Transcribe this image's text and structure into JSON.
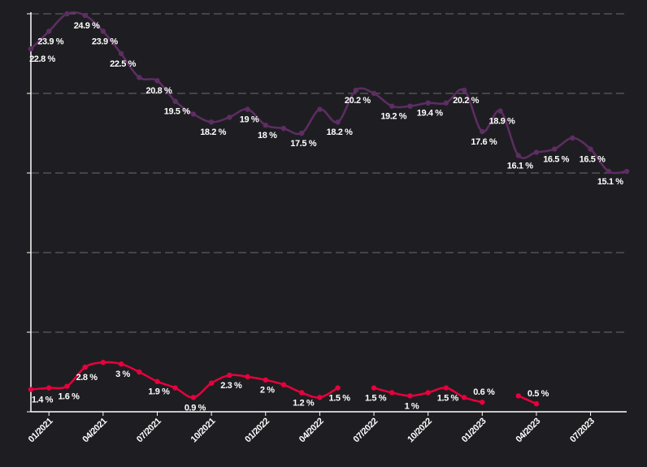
{
  "chart_data": {
    "type": "line",
    "categories": [
      null,
      "01/2021",
      null,
      null,
      "04/2021",
      null,
      null,
      "07/2021",
      null,
      null,
      "10/2021",
      null,
      null,
      "01/2022",
      null,
      null,
      "04/2022",
      null,
      null,
      "07/2022",
      null,
      null,
      "10/2022",
      null,
      null,
      "01/2023",
      null,
      null,
      "04/2023",
      null,
      null,
      "07/2023",
      null,
      null
    ],
    "series": [
      {
        "color": "#5e2d63",
        "values": [
          22.8,
          23.9,
          25.0,
          24.9,
          23.9,
          22.5,
          21.0,
          20.8,
          19.5,
          18.7,
          18.2,
          18.5,
          19.0,
          18.0,
          17.8,
          17.5,
          19.0,
          18.2,
          20.2,
          20.0,
          19.2,
          19.2,
          19.4,
          19.4,
          20.2,
          17.6,
          18.9,
          16.1,
          16.3,
          16.5,
          17.2,
          16.5,
          15.1,
          15.1
        ],
        "value_labels": [
          "22.8 %",
          "23.9 %",
          null,
          "24.9 %",
          "23.9 %",
          "22.5 %",
          null,
          "20.8 %",
          "19.5 %",
          null,
          "18.2 %",
          null,
          "19 %",
          "18 %",
          null,
          "17.5 %",
          null,
          "18.2 %",
          "20.2 %",
          null,
          "19.2 %",
          null,
          "19.4 %",
          null,
          "20.2 %",
          "17.6 %",
          "18.9 %",
          "16.1 %",
          null,
          "16.5 %",
          null,
          "16.5 %",
          "15.1 %",
          null
        ]
      },
      {
        "color": "#e8003d",
        "values": [
          1.4,
          1.5,
          1.6,
          2.8,
          3.1,
          3.0,
          2.5,
          1.9,
          1.5,
          0.9,
          1.8,
          2.3,
          2.2,
          2.0,
          1.7,
          1.2,
          0.9,
          1.5,
          null,
          1.5,
          1.2,
          1.0,
          1.2,
          1.5,
          0.9,
          0.6,
          null,
          1.0,
          0.5,
          null,
          null,
          null,
          null,
          null
        ],
        "value_labels": [
          "1.4 %",
          null,
          "1.6 %",
          "2.8 %",
          null,
          "3 %",
          null,
          "1.9 %",
          null,
          "0.9 %",
          null,
          "2.3 %",
          null,
          "2 %",
          null,
          "1.2 %",
          null,
          "1.5 %",
          null,
          "1.5 %",
          null,
          "1 %",
          null,
          "1.5 %",
          null,
          "0.6 %",
          null,
          null,
          "0.5 %",
          null,
          null,
          null,
          null,
          null
        ]
      }
    ],
    "ylim": [
      0,
      25
    ],
    "yticks": [
      0,
      5,
      10,
      15,
      20,
      25
    ],
    "grid": true
  }
}
